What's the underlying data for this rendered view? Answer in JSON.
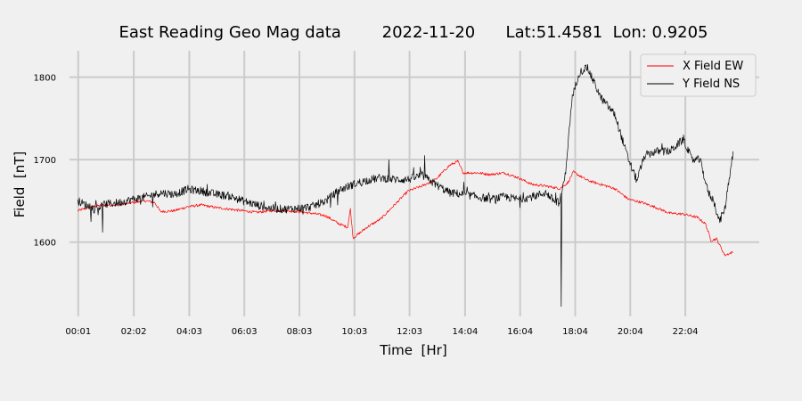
{
  "chart_data": {
    "type": "line",
    "title": "East Reading Geo Mag data        2022-11-20      Lat:51.4581  Lon: 0.9205",
    "xlabel": "Time  [Hr]",
    "ylabel": "Field  [nT]",
    "xlim": [
      -0.3,
      24.75
    ],
    "ylim": [
      1510,
      1832
    ],
    "x_ticks": [
      {
        "value": 0.0167,
        "label": "00:01"
      },
      {
        "value": 2.0333,
        "label": "02:02"
      },
      {
        "value": 4.05,
        "label": "04:03"
      },
      {
        "value": 6.05,
        "label": "06:03"
      },
      {
        "value": 8.05,
        "label": "08:03"
      },
      {
        "value": 10.05,
        "label": "10:03"
      },
      {
        "value": 12.05,
        "label": "12:03"
      },
      {
        "value": 14.0667,
        "label": "14:04"
      },
      {
        "value": 16.0667,
        "label": "16:04"
      },
      {
        "value": 18.0667,
        "label": "18:04"
      },
      {
        "value": 20.0667,
        "label": "20:04"
      },
      {
        "value": 22.0667,
        "label": "22:04"
      }
    ],
    "y_ticks": [
      1600,
      1700,
      1800
    ],
    "grid": true,
    "legend": "top-right",
    "series": [
      {
        "name": "X Field EW",
        "color": "#ff0000",
        "x": [
          0.0,
          0.5,
          1.0,
          1.5,
          2.0,
          2.5,
          2.8,
          3.0,
          3.5,
          4.0,
          4.5,
          5.0,
          5.5,
          6.0,
          6.5,
          7.0,
          7.5,
          8.0,
          8.5,
          9.0,
          9.5,
          9.8,
          9.9,
          10.0,
          10.2,
          10.5,
          11.0,
          11.5,
          12.0,
          12.5,
          13.0,
          13.5,
          13.8,
          14.0,
          14.5,
          15.0,
          15.5,
          16.0,
          16.5,
          17.0,
          17.5,
          17.8,
          18.0,
          18.5,
          19.0,
          19.5,
          20.0,
          20.5,
          21.0,
          21.5,
          22.0,
          22.5,
          22.8,
          23.0,
          23.2,
          23.5,
          23.8
        ],
        "y": [
          1638,
          1643,
          1645,
          1645,
          1648,
          1650,
          1648,
          1637,
          1638,
          1643,
          1645,
          1642,
          1640,
          1638,
          1636,
          1638,
          1638,
          1637,
          1635,
          1632,
          1622,
          1618,
          1640,
          1605,
          1610,
          1618,
          1628,
          1645,
          1662,
          1668,
          1676,
          1693,
          1698,
          1684,
          1684,
          1682,
          1684,
          1678,
          1670,
          1668,
          1665,
          1672,
          1685,
          1675,
          1670,
          1665,
          1652,
          1648,
          1642,
          1635,
          1634,
          1630,
          1622,
          1602,
          1604,
          1584,
          1588
        ]
      },
      {
        "name": "Y Field NS",
        "color": "#000000",
        "x": [
          0.0,
          0.3,
          0.6,
          1.0,
          1.5,
          2.0,
          2.5,
          3.0,
          3.5,
          4.0,
          4.5,
          5.0,
          5.5,
          6.0,
          6.5,
          7.0,
          7.5,
          8.0,
          8.5,
          9.0,
          9.5,
          10.0,
          10.5,
          11.0,
          11.5,
          12.0,
          12.5,
          13.0,
          13.5,
          14.0,
          14.5,
          15.0,
          15.5,
          16.0,
          16.5,
          17.0,
          17.3,
          17.5,
          17.7,
          17.9,
          18.0,
          18.2,
          18.5,
          18.8,
          19.0,
          19.5,
          20.0,
          20.3,
          20.6,
          21.0,
          21.5,
          22.0,
          22.3,
          22.6,
          22.9,
          23.1,
          23.3,
          23.5,
          23.8
        ],
        "y": [
          1650,
          1645,
          1640,
          1646,
          1648,
          1652,
          1655,
          1660,
          1658,
          1664,
          1662,
          1658,
          1656,
          1650,
          1645,
          1641,
          1640,
          1641,
          1643,
          1650,
          1663,
          1670,
          1675,
          1678,
          1676,
          1676,
          1681,
          1670,
          1660,
          1658,
          1655,
          1652,
          1655,
          1652,
          1655,
          1660,
          1650,
          1648,
          1680,
          1755,
          1780,
          1805,
          1812,
          1790,
          1775,
          1755,
          1700,
          1675,
          1705,
          1710,
          1710,
          1725,
          1700,
          1700,
          1660,
          1650,
          1625,
          1640,
          1710
        ]
      }
    ]
  }
}
